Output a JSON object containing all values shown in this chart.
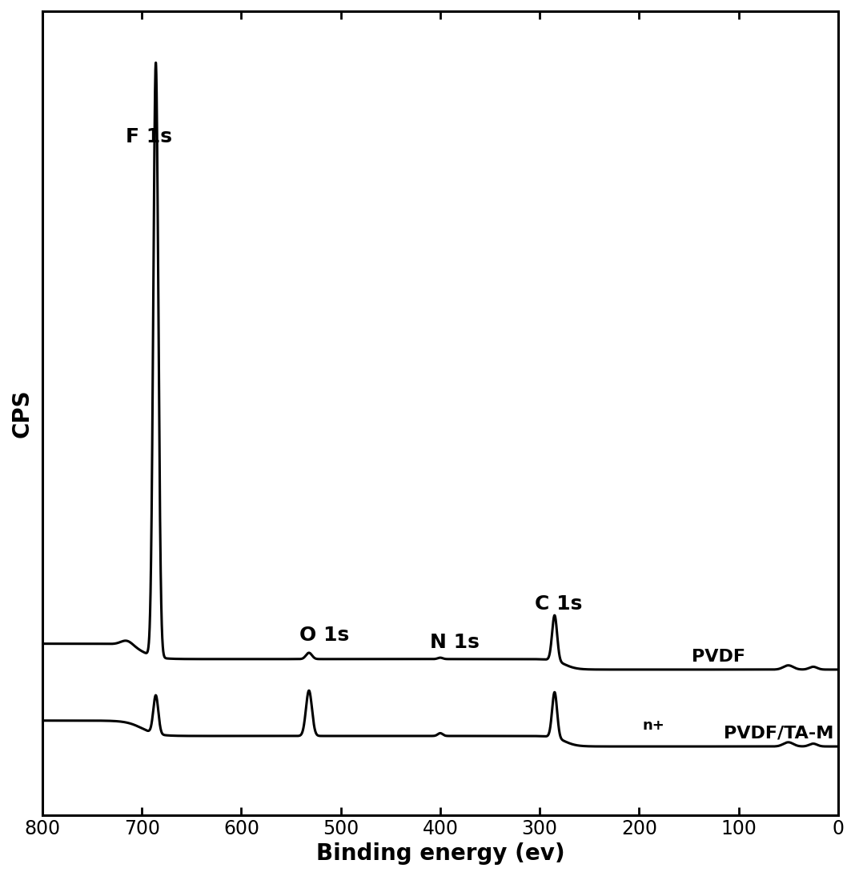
{
  "xlabel": "Binding energy (ev)",
  "ylabel": "CPS",
  "xlim": [
    800,
    0
  ],
  "xticks": [
    800,
    700,
    600,
    500,
    400,
    300,
    200,
    100,
    0
  ],
  "background_color": "#ffffff",
  "line_color": "#000000",
  "label_pvdf": "PVDF",
  "label_pvdf_ta": "PVDF/TA-M",
  "label_pvdf_ta_super": "n+",
  "xlabel_fontsize": 20,
  "ylabel_fontsize": 20,
  "tick_fontsize": 17,
  "annotation_fontsize": 18,
  "label_fontsize": 16
}
